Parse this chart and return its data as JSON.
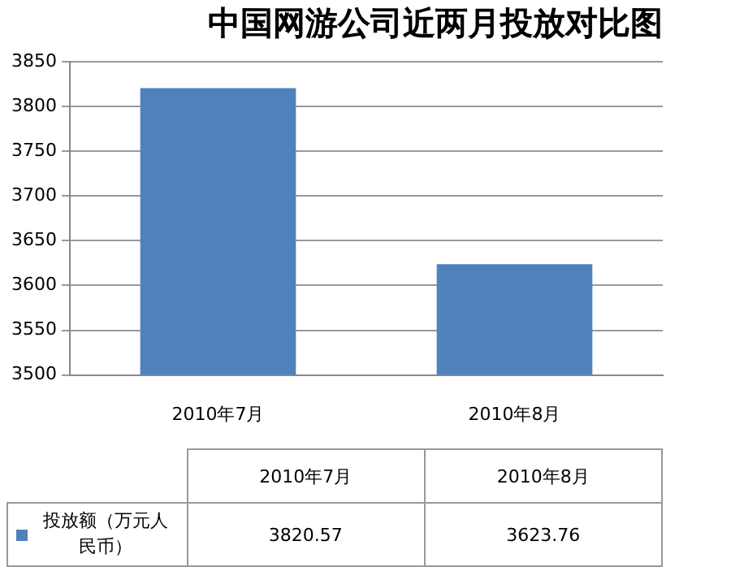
{
  "chart_data": {
    "type": "bar",
    "title": "中国网游公司近两月投放对比图",
    "categories": [
      "2010年7月",
      "2010年8月"
    ],
    "series": [
      {
        "name": "投放额（万元人民币）",
        "color": "#4f81bd",
        "values": [
          3820.57,
          3623.76
        ]
      }
    ],
    "ylim": [
      3500,
      3850
    ],
    "yticks": [
      3500,
      3550,
      3600,
      3650,
      3700,
      3750,
      3800,
      3850
    ],
    "grid": "y",
    "legend": "bottom",
    "data_labels": true
  }
}
